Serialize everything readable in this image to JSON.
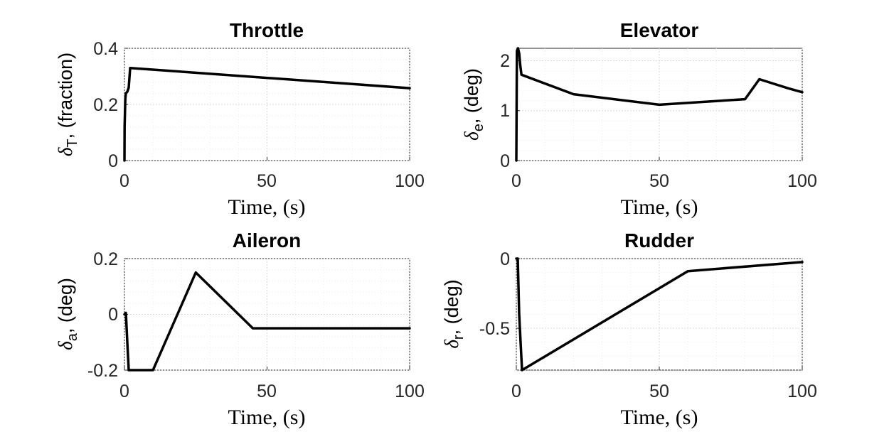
{
  "chart_data": [
    {
      "type": "line",
      "title": "Throttle",
      "xlabel": "Time, (s)",
      "ylabel": {
        "symbol": "δ",
        "subscript": "T",
        "suffix": ", (fraction)"
      },
      "xlim": [
        0,
        100
      ],
      "ylim": [
        0,
        0.4
      ],
      "xticks": [
        "0",
        "50",
        "100"
      ],
      "yticks": [
        "0",
        "0.2",
        "0.4"
      ],
      "grid": true,
      "minor_grid": true,
      "series": [
        {
          "color": "#000000",
          "x": [
            0,
            0.05,
            0.3,
            0.5,
            1,
            1.5,
            2,
            100
          ],
          "y": [
            0,
            0.12,
            0.22,
            0.24,
            0.245,
            0.26,
            0.33,
            0.258
          ]
        }
      ]
    },
    {
      "type": "line",
      "title": "Elevator",
      "xlabel": "Time, (s)",
      "ylabel": {
        "symbol": "δ",
        "subscript": "e",
        "suffix": ", (deg)"
      },
      "xlim": [
        0,
        100
      ],
      "ylim": [
        0,
        2.25
      ],
      "xticks": [
        "0",
        "50",
        "100"
      ],
      "yticks": [
        "0",
        "1",
        "2"
      ],
      "grid": true,
      "minor_grid": true,
      "series": [
        {
          "color": "#000000",
          "x": [
            0,
            0.2,
            0.6,
            1,
            1.4,
            1.8,
            20,
            50,
            80,
            85,
            95,
            100
          ],
          "y": [
            0,
            2.2,
            2.25,
            2.15,
            1.9,
            1.72,
            1.33,
            1.12,
            1.23,
            1.63,
            1.45,
            1.37
          ]
        }
      ]
    },
    {
      "type": "line",
      "title": "Aileron",
      "xlabel": "Time, (s)",
      "ylabel": {
        "symbol": "δ",
        "subscript": "a",
        "suffix": ", (deg)"
      },
      "xlim": [
        0,
        100
      ],
      "ylim": [
        -0.2,
        0.2
      ],
      "xticks": [
        "0",
        "50",
        "100"
      ],
      "yticks": [
        "-0.2",
        "0",
        "0.2"
      ],
      "grid": true,
      "minor_grid": true,
      "series": [
        {
          "color": "#000000",
          "x": [
            0,
            0.5,
            1,
            1.5,
            10,
            25,
            45,
            100
          ],
          "y": [
            0,
            0.005,
            -0.1,
            -0.2,
            -0.2,
            0.15,
            -0.05,
            -0.05
          ]
        }
      ]
    },
    {
      "type": "line",
      "title": "Rudder",
      "xlabel": "Time, (s)",
      "ylabel": {
        "symbol": "δ",
        "subscript": "r",
        "suffix": ", (deg)"
      },
      "xlim": [
        0,
        100
      ],
      "ylim": [
        -0.8,
        0
      ],
      "xticks": [
        "0",
        "50",
        "100"
      ],
      "yticks": [
        "-0.5",
        "0"
      ],
      "ytick_values": [
        -0.5,
        0
      ],
      "grid": true,
      "minor_grid": true,
      "series": [
        {
          "color": "#000000",
          "x": [
            0,
            0.5,
            1,
            2,
            60,
            100
          ],
          "y": [
            0,
            0,
            -0.4,
            -0.8,
            -0.09,
            -0.025
          ]
        }
      ]
    }
  ]
}
